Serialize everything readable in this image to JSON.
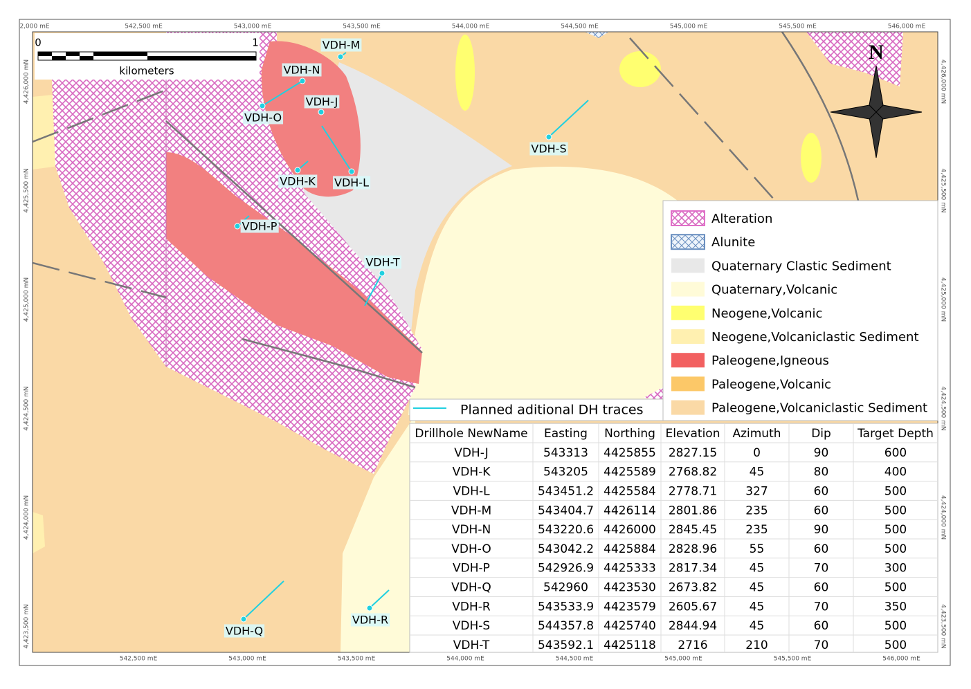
{
  "frame": {
    "top_labels": [
      "2,000 mE",
      "542,500 mE",
      "543,000 mE",
      "543,500 mE",
      "544,000 mE",
      "544,500 mE",
      "545,000 mE",
      "545,500 mE",
      "546,000 mE"
    ],
    "bottom_labels": [
      "542,500 mE",
      "543,000 mE",
      "543,500 mE",
      "544,000 mE",
      "544,500 mE",
      "545,000 mE",
      "545,500 mE",
      "546,000 mE"
    ],
    "left_labels": [
      "4,426,000 mN",
      "4,425,500 mN",
      "4,425,000 mN",
      "4,424,500 mN",
      "4,424,000 mN",
      "4,423,500 mN"
    ],
    "right_labels": [
      "4,426,000 mN",
      "4,425,500 mN",
      "4,425,000 mN",
      "4,424,500 mN",
      "4,424,000 mN",
      "4,423,500 mN"
    ]
  },
  "scale_bar": {
    "start": "0",
    "end": "1",
    "unit": "kilometers"
  },
  "north_arrow": "N",
  "drillholes": [
    "VDH-M",
    "VDH-N",
    "VDH-O",
    "VDH-J",
    "VDH-K",
    "VDH-L",
    "VDH-P",
    "VDH-T",
    "VDH-S",
    "VDH-Q",
    "VDH-R"
  ],
  "legend": {
    "items": [
      {
        "label": "Alteration",
        "color": "#e070c8"
      },
      {
        "label": "Alunite",
        "color": "#6a8fc0"
      },
      {
        "label": "Quaternary Clastic Sediment",
        "color": "#e8e8e8"
      },
      {
        "label": "Quaternary,Volcanic",
        "color": "#fffbd8"
      },
      {
        "label": "Neogene,Volcanic",
        "color": "#ffff70"
      },
      {
        "label": "Neogene,Volcaniclastic Sediment",
        "color": "#fff0b0"
      },
      {
        "label": "Paleogene,Igneous",
        "color": "#f26060"
      },
      {
        "label": "Paleogene,Volcanic",
        "color": "#fcc868"
      },
      {
        "label": "Paleogene,Volcaniclastic Sediment",
        "color": "#fad9a6"
      }
    ],
    "trace_label": "Planned aditional DH traces"
  },
  "table": {
    "header": [
      "Drillhole NewName",
      "Easting",
      "Northing",
      "Elevation",
      "Azimuth",
      "Dip",
      "Target Depth"
    ],
    "rows": [
      [
        "VDH-J",
        "543313",
        "4425855",
        "2827.15",
        "0",
        "90",
        "600"
      ],
      [
        "VDH-K",
        "543205",
        "4425589",
        "2768.82",
        "45",
        "80",
        "400"
      ],
      [
        "VDH-L",
        "543451.2",
        "4425584",
        "2778.71",
        "327",
        "60",
        "500"
      ],
      [
        "VDH-M",
        "543404.7",
        "4426114",
        "2801.86",
        "235",
        "60",
        "500"
      ],
      [
        "VDH-N",
        "543220.6",
        "4426000",
        "2845.45",
        "235",
        "90",
        "500"
      ],
      [
        "VDH-O",
        "543042.2",
        "4425884",
        "2828.96",
        "55",
        "60",
        "500"
      ],
      [
        "VDH-P",
        "542926.9",
        "4425333",
        "2817.34",
        "45",
        "70",
        "300"
      ],
      [
        "VDH-Q",
        "542960",
        "4423530",
        "2673.82",
        "45",
        "60",
        "500"
      ],
      [
        "VDH-R",
        "543533.9",
        "4423579",
        "2605.67",
        "45",
        "70",
        "350"
      ],
      [
        "VDH-S",
        "544357.8",
        "4425740",
        "2844.94",
        "45",
        "60",
        "500"
      ],
      [
        "VDH-T",
        "543592.1",
        "4425118",
        "2716",
        "210",
        "70",
        "500"
      ]
    ]
  }
}
